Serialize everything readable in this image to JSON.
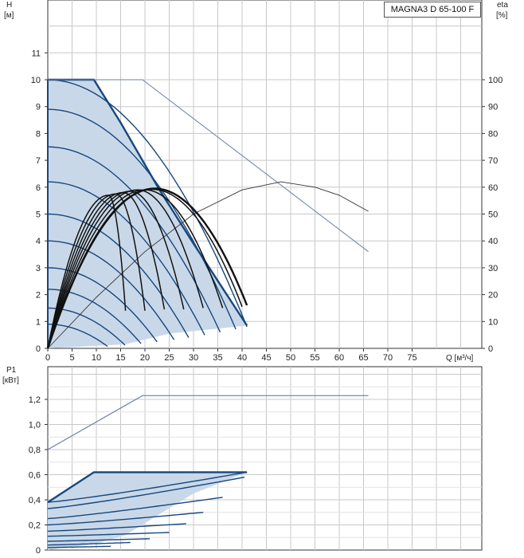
{
  "model_label": "MAGNA3 D 65-100 F",
  "colors": {
    "area_fill": "#c9d8e8",
    "curve_blue": "#17477e",
    "efficiency_black": "#111111",
    "thin_line": "#6a80a8",
    "grid": "#c8c8c8",
    "axis": "#333333"
  },
  "chart_data": [
    {
      "type": "line",
      "title": "",
      "xlabel": "Q [м³/ч]",
      "ylabel": "H\n[м]",
      "y2label": "eta\n[%]",
      "xlim": [
        0,
        80
      ],
      "ylim": [
        0,
        12
      ],
      "y2lim": [
        0,
        120
      ],
      "grid": true,
      "xticks": [
        "0",
        "5",
        "10",
        "15",
        "20",
        "25",
        "30",
        "35",
        "40",
        "45",
        "50",
        "55",
        "60",
        "65",
        "70",
        "75"
      ],
      "yticks": [
        "0",
        "1",
        "2",
        "3",
        "4",
        "5",
        "6",
        "7",
        "8",
        "9",
        "10",
        "11"
      ],
      "y2ticks": [
        "0",
        "10",
        "20",
        "30",
        "40",
        "50",
        "60",
        "70",
        "80",
        "90",
        "100"
      ],
      "operating_area": [
        [
          0,
          10
        ],
        [
          9.5,
          10
        ],
        [
          15,
          8.4
        ],
        [
          23,
          5.9
        ],
        [
          30,
          3.9
        ],
        [
          41,
          0.85
        ],
        [
          25,
          0.55
        ],
        [
          16,
          0.15
        ],
        [
          0,
          0
        ]
      ],
      "hq_curves": [
        {
          "h0": 10.0,
          "qmax": 41
        },
        {
          "h0": 8.9,
          "qmax": 38.7
        },
        {
          "h0": 7.5,
          "qmax": 35.5
        },
        {
          "h0": 6.2,
          "qmax": 32.3
        },
        {
          "h0": 5.0,
          "qmax": 29
        },
        {
          "h0": 4.0,
          "qmax": 26
        },
        {
          "h0": 3.0,
          "qmax": 22.5
        },
        {
          "h0": 2.2,
          "qmax": 19.2
        },
        {
          "h0": 1.5,
          "qmax": 15.9
        },
        {
          "h0": 0.9,
          "qmax": 12.3
        }
      ],
      "eff_curves": [
        {
          "qpeak": 12.5,
          "hpeak": 5.7,
          "qend": 16,
          "hend": 1.4
        },
        {
          "qpeak": 14,
          "hpeak": 5.75,
          "qend": 20,
          "hend": 1.4
        },
        {
          "qpeak": 15.5,
          "hpeak": 5.8,
          "qend": 24,
          "hend": 1.45
        },
        {
          "qpeak": 17,
          "hpeak": 5.85,
          "qend": 28,
          "hend": 1.45
        },
        {
          "qpeak": 18.5,
          "hpeak": 5.9,
          "qend": 32,
          "hend": 1.5
        },
        {
          "qpeak": 20,
          "hpeak": 5.9,
          "qend": 36,
          "hend": 1.5
        },
        {
          "qpeak": 21.5,
          "hpeak": 5.92,
          "qend": 40,
          "hend": 1.55
        },
        {
          "qpeak": 22,
          "hpeak": 5.95,
          "qend": 41,
          "hend": 1.6,
          "bold": true
        }
      ],
      "eta_curve_pct": [
        [
          0,
          0
        ],
        [
          10,
          19
        ],
        [
          20,
          36
        ],
        [
          30,
          50
        ],
        [
          40,
          59
        ],
        [
          48,
          62
        ],
        [
          55,
          60
        ],
        [
          60,
          57
        ],
        [
          66,
          51
        ]
      ],
      "h_max_line": [
        [
          0,
          10
        ],
        [
          19.5,
          10
        ],
        [
          66,
          3.6
        ]
      ]
    },
    {
      "type": "line",
      "title": "",
      "xlabel": "",
      "ylabel": "P1\n[кВт]",
      "xlim": [
        0,
        80
      ],
      "ylim": [
        0,
        1.4
      ],
      "grid": true,
      "yticks": [
        "0",
        "0,2",
        "0,4",
        "0,6",
        "0,8",
        "1,0",
        "1,2"
      ],
      "operating_area": [
        [
          0,
          0.38
        ],
        [
          9.5,
          0.62
        ],
        [
          41,
          0.62
        ],
        [
          30,
          0.45
        ],
        [
          16,
          0.12
        ],
        [
          10,
          0.05
        ],
        [
          0,
          0
        ]
      ],
      "p_curves": [
        {
          "qend": 41,
          "pend": 0.62,
          "p0": 0.38
        },
        {
          "qend": 40.5,
          "pend": 0.58,
          "p0": 0.33
        },
        {
          "qend": 36,
          "pend": 0.42,
          "p0": 0.25
        },
        {
          "qend": 32,
          "pend": 0.3,
          "p0": 0.2
        },
        {
          "qend": 28.5,
          "pend": 0.21,
          "p0": 0.15
        },
        {
          "qend": 25,
          "pend": 0.14,
          "p0": 0.11
        },
        {
          "qend": 21,
          "pend": 0.09,
          "p0": 0.07
        },
        {
          "qend": 17,
          "pend": 0.06,
          "p0": 0.04
        },
        {
          "qend": 13,
          "pend": 0.03,
          "p0": 0.02
        }
      ],
      "pmax_line": [
        [
          0,
          0.8
        ],
        [
          19.5,
          1.23
        ],
        [
          66,
          1.23
        ]
      ]
    }
  ]
}
